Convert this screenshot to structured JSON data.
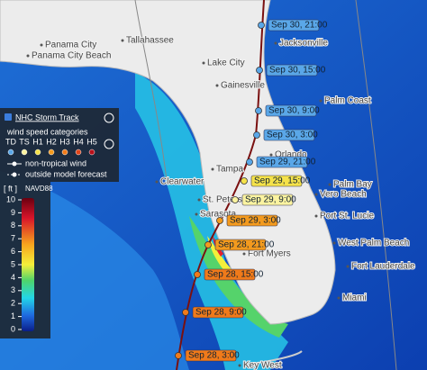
{
  "cities": [
    "Tallahassee",
    "Panama City",
    "Panama City Beach",
    "Lake City",
    "Gainesville",
    "Jacksonville",
    "Palm Coast",
    "Orlando",
    "Palm Bay",
    "Vero Beach",
    "Port St. Lucie",
    "Clearwater",
    "Tampa",
    "St. Petersburg",
    "Sarasota",
    "Fort Myers",
    "West Palm Beach",
    "Fort Lauderdale",
    "Miami",
    "Key West"
  ],
  "track": {
    "title": "NHC Storm Track",
    "points": [
      {
        "label": "Sep 30, 21:00",
        "color": "#5aa7e8"
      },
      {
        "label": "Sep 30, 15:00",
        "color": "#5aa7e8"
      },
      {
        "label": "Sep 30, 9:00",
        "color": "#5aa7e8"
      },
      {
        "label": "Sep 30, 3:00",
        "color": "#5aa7e8"
      },
      {
        "label": "Sep 29, 21:00",
        "color": "#5aa7e8"
      },
      {
        "label": "Sep 29, 15:00",
        "color": "#f5e24a"
      },
      {
        "label": "Sep 29, 9:00",
        "color": "#fbf3a0"
      },
      {
        "label": "Sep 29, 3:00",
        "color": "#f39a1e"
      },
      {
        "label": "Sep 28, 21:00",
        "color": "#f39a1e"
      },
      {
        "label": "Sep 28, 15:00",
        "color": "#f07a1a"
      },
      {
        "label": "Sep 28, 9:00",
        "color": "#f07a1a"
      },
      {
        "label": "Sep 28, 3:00",
        "color": "#f07a1a"
      }
    ]
  },
  "legend": {
    "heading": "wind speed categories",
    "categories": [
      {
        "label": "TD",
        "color": "#5aa7e8"
      },
      {
        "label": "TS",
        "color": "#fbf3a0"
      },
      {
        "label": "H1",
        "color": "#f5e24a"
      },
      {
        "label": "H2",
        "color": "#f39a1e"
      },
      {
        "label": "H3",
        "color": "#f07a1a"
      },
      {
        "label": "H4",
        "color": "#e0441a"
      },
      {
        "label": "H5",
        "color": "#b8101a"
      }
    ],
    "non_tropical": "non-tropical wind",
    "outside": "outside model forecast"
  },
  "scale": {
    "unit": "[ ft ]",
    "datum": "NAVD88",
    "ticks": [
      10,
      9,
      8,
      7,
      6,
      5,
      4,
      3,
      2,
      1,
      0
    ]
  }
}
